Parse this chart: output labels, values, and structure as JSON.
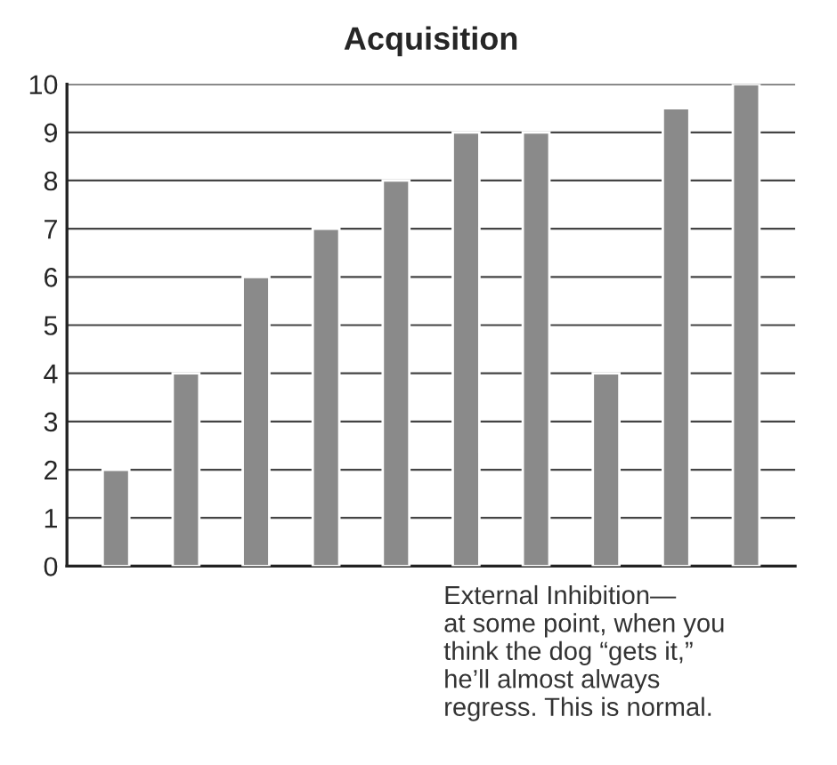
{
  "chart_data": {
    "type": "bar",
    "title": "Acquisition",
    "categories": [
      null,
      null,
      null,
      null,
      null,
      null,
      null,
      null,
      null,
      null
    ],
    "values": [
      2,
      4,
      6,
      7,
      8,
      9,
      9,
      4,
      9.5,
      10
    ],
    "color": "#8a8a8a",
    "ylim": [
      0,
      10
    ],
    "yticks": [
      0,
      1,
      2,
      3,
      4,
      5,
      6,
      7,
      8,
      9,
      10
    ],
    "grid": "y",
    "annotations": [
      "External Inhibition—\nat some point, when you\nthink the dog “gets it,”\nhe’ll almost always\nregress. This is normal."
    ]
  }
}
